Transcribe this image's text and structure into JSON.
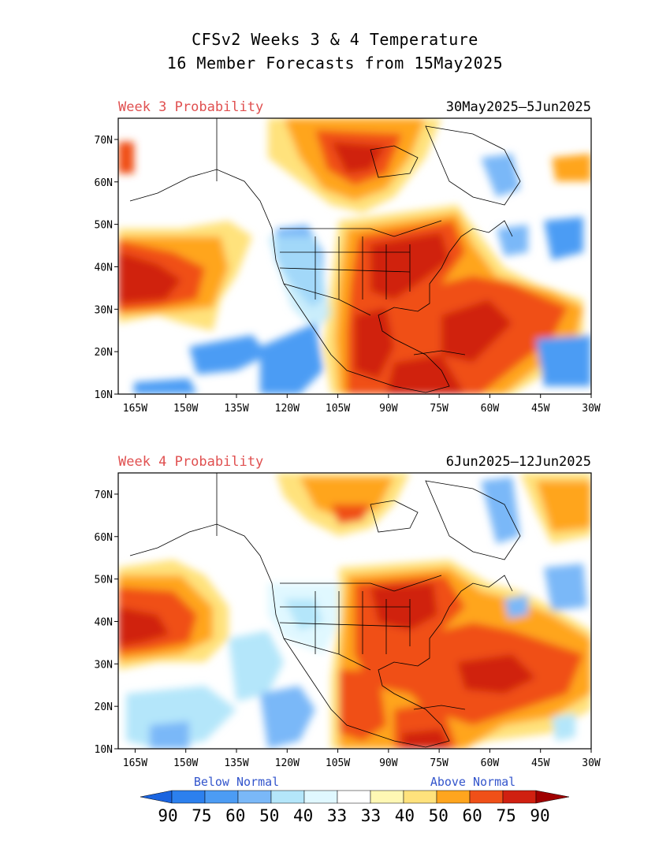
{
  "title": {
    "line1": "CFSv2 Weeks 3 & 4 Temperature",
    "line2": "16 Member Forecasts from 15May2025"
  },
  "panels": [
    {
      "label": "Week 3 Probability",
      "dates": "30May2025—5Jun2025"
    },
    {
      "label": "Week 4 Probability",
      "dates": "6Jun2025—12Jun2025"
    }
  ],
  "axes": {
    "lon_ticks": [
      "165W",
      "150W",
      "135W",
      "120W",
      "105W",
      "90W",
      "75W",
      "60W",
      "45W",
      "30W"
    ],
    "lat_ticks": [
      "10N",
      "20N",
      "30N",
      "40N",
      "50N",
      "60N",
      "70N"
    ],
    "lon_values": [
      -165,
      -150,
      -135,
      -120,
      -105,
      -90,
      -75,
      -60,
      -45,
      -30
    ],
    "lat_values": [
      10,
      20,
      30,
      40,
      50,
      60,
      70
    ],
    "lon_range": [
      -170,
      -30
    ],
    "lat_range": [
      10,
      75
    ]
  },
  "legend": {
    "below_label": "Below Normal",
    "above_label": "Above Normal",
    "values": [
      "90",
      "75",
      "60",
      "50",
      "40",
      "33",
      "33",
      "40",
      "50",
      "60",
      "75",
      "90"
    ],
    "colors": [
      "#1a64e0",
      "#2c80ee",
      "#4c9cf4",
      "#7ab8f8",
      "#b4e6fa",
      "#e0f8ff",
      "#ffffff",
      "#fff8b4",
      "#ffe27c",
      "#ffa51e",
      "#f05018",
      "#d02010",
      "#a00000"
    ],
    "below_color": "#3355cc",
    "above_color": "#3355cc"
  },
  "colors": {
    "panel_label": "#e05050"
  }
}
